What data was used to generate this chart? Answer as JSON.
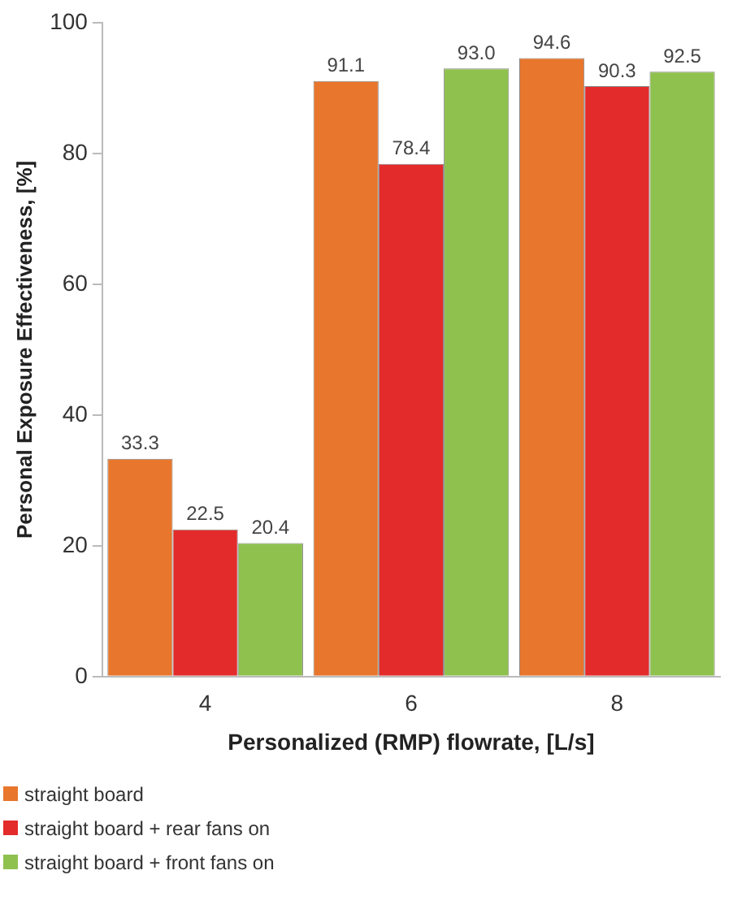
{
  "chart_data": {
    "type": "bar",
    "xlabel": "Personalized (RMP) flowrate, [L/s]",
    "ylabel": "Personal Exposure Effectiveness, [%]",
    "categories": [
      "4",
      "6",
      "8"
    ],
    "series": [
      {
        "name": "straight board",
        "color": "#e8762c",
        "values": [
          33.3,
          91.1,
          94.6
        ]
      },
      {
        "name": "straight board + rear fans on",
        "color": "#e42b2b",
        "values": [
          22.5,
          78.4,
          90.3
        ]
      },
      {
        "name": "straight board + front fans on",
        "color": "#8fc14f",
        "values": [
          20.4,
          93.0,
          92.5
        ]
      }
    ],
    "value_labels": [
      [
        "33.3",
        "91.1",
        "94.6"
      ],
      [
        "22.5",
        "78.4",
        "90.3"
      ],
      [
        "20.4",
        "93.0",
        "92.5"
      ]
    ],
    "ylim": [
      0,
      100
    ],
    "yticks": [
      0,
      20,
      40,
      60,
      80,
      100
    ],
    "grid": false,
    "legend": "bottom"
  }
}
